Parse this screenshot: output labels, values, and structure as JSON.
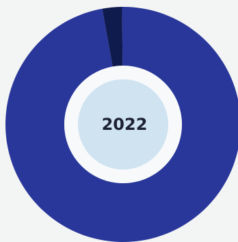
{
  "chart_data": {
    "type": "pie",
    "variant": "donut",
    "title": "",
    "center_label": "2022",
    "legend": "none",
    "slices": [
      {
        "value": 97.3,
        "color": "#29379a"
      },
      {
        "value": 2.7,
        "color": "#0f1a4d"
      }
    ]
  },
  "colors": {
    "background": "#f3f4f4",
    "ring_gap": "#f7f9fb",
    "center_fill": "#cfe3f1",
    "center_text": "#1d2233"
  }
}
